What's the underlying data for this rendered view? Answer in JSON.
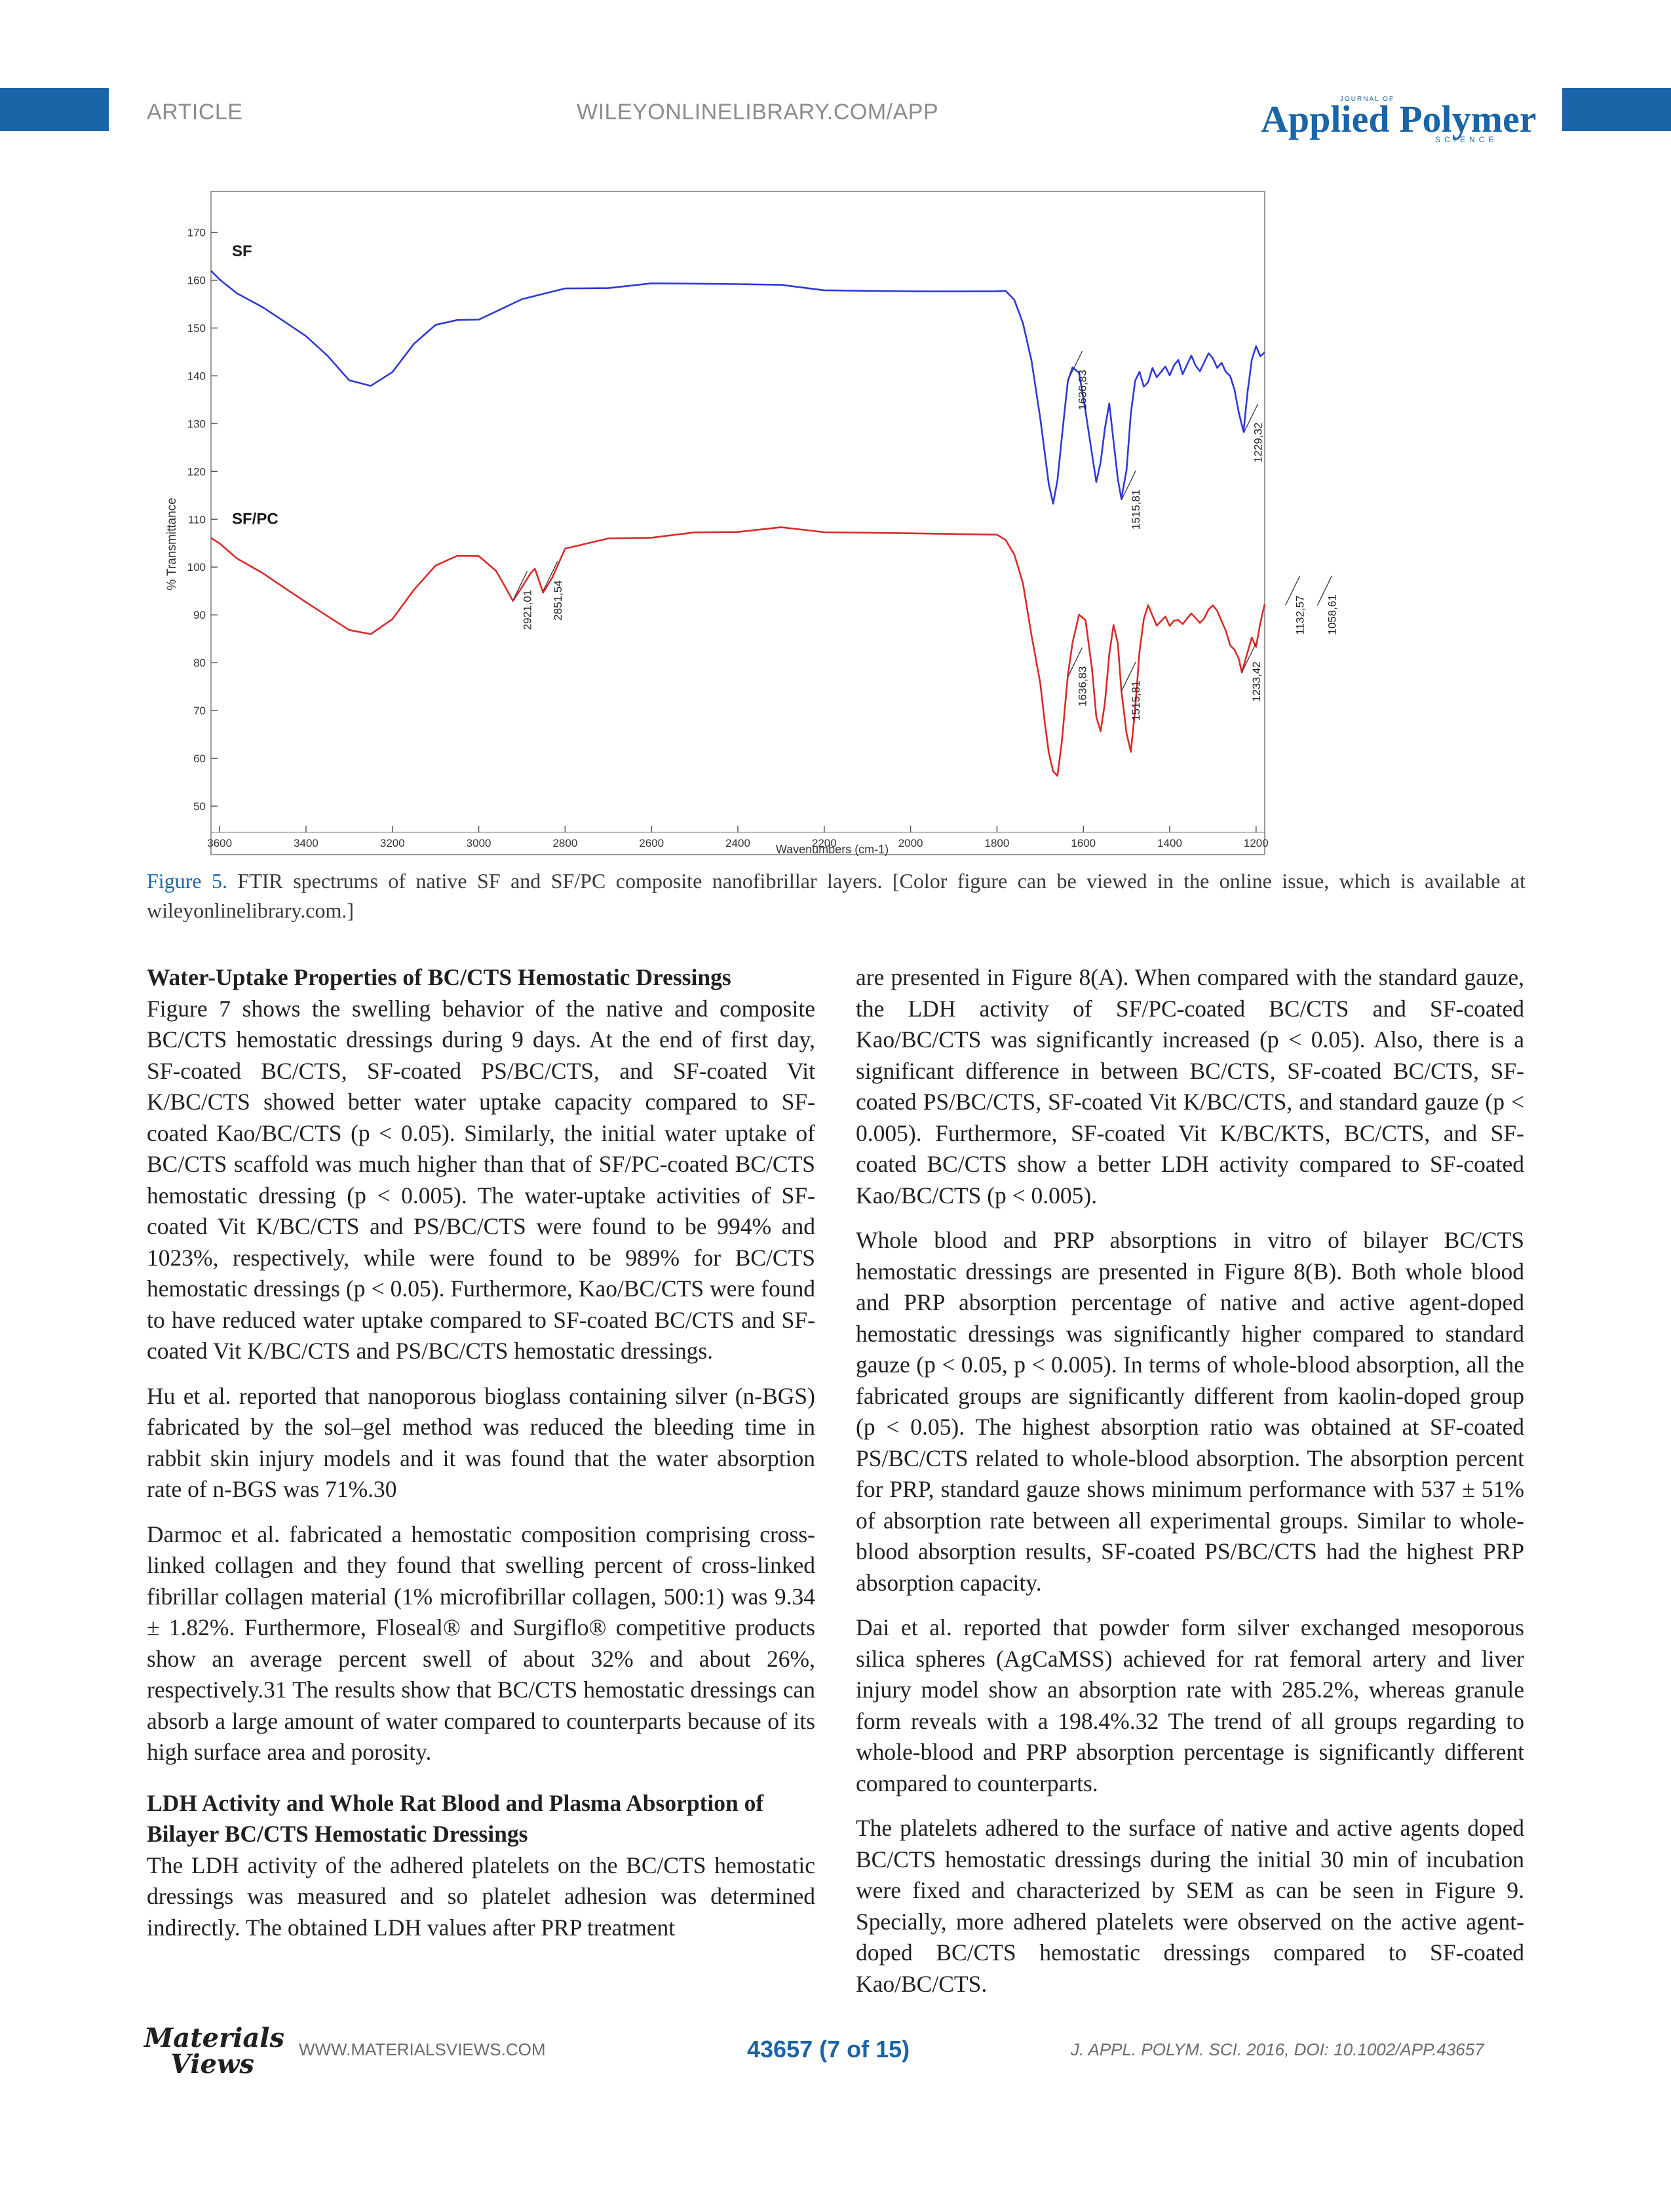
{
  "header": {
    "section": "ARTICLE",
    "url": "WILEYONLINELIBRARY.COM/APP",
    "journal_small": "JOURNAL OF",
    "journal": "Applied Polymer",
    "journal_sub": "SCIENCE",
    "accent_color": "#1a64a8"
  },
  "chart_data": {
    "type": "line",
    "xlabel": "Wavenumbers (cm-1)",
    "ylabel": "% Transmittance",
    "xlim": [
      3620,
      1180
    ],
    "ylim": [
      50,
      172
    ],
    "x_reversed": true,
    "x_ticks": [
      3600,
      3400,
      3200,
      3000,
      2800,
      2600,
      2400,
      2200,
      2000,
      1800,
      1600,
      1400,
      1200
    ],
    "y_ticks": [
      50,
      60,
      70,
      80,
      90,
      100,
      110,
      120,
      130,
      140,
      150,
      160,
      170
    ],
    "grid": false,
    "series": [
      {
        "name": "SF",
        "color": "#2e38d6",
        "x": [
          3620,
          3600,
          3560,
          3500,
          3450,
          3400,
          3350,
          3300,
          3250,
          3200,
          3150,
          3100,
          3050,
          3000,
          2950,
          2900,
          2850,
          2800,
          2700,
          2600,
          2500,
          2400,
          2300,
          2200,
          2100,
          2000,
          1900,
          1800,
          1780,
          1760,
          1740,
          1720,
          1700,
          1690,
          1680,
          1670,
          1660,
          1650,
          1636,
          1625,
          1610,
          1595,
          1580,
          1570,
          1560,
          1550,
          1540,
          1530,
          1520,
          1512,
          1500,
          1490,
          1480,
          1470,
          1460,
          1450,
          1440,
          1430,
          1420,
          1410,
          1400,
          1390,
          1380,
          1370,
          1360,
          1350,
          1340,
          1330,
          1320,
          1310,
          1300,
          1290,
          1280,
          1270,
          1260,
          1250,
          1240,
          1229,
          1220,
          1210,
          1200,
          1190,
          1180
        ],
        "y": [
          162,
          160,
          157,
          154,
          151,
          148,
          144,
          139,
          138,
          141,
          147,
          151,
          152,
          152,
          154,
          156,
          157,
          158,
          158,
          159,
          159,
          159,
          159,
          158,
          158,
          158,
          158,
          158,
          158,
          156,
          151,
          143,
          131,
          124,
          117,
          113,
          118,
          127,
          139,
          142,
          141,
          133,
          124,
          118,
          122,
          129,
          134,
          126,
          118,
          114,
          120,
          132,
          139,
          141,
          138,
          139,
          142,
          140,
          141,
          142,
          140,
          142,
          143,
          140,
          142,
          144,
          142,
          141,
          143,
          145,
          144,
          142,
          143,
          141,
          140,
          137,
          132,
          128,
          136,
          143,
          146,
          144,
          145
        ]
      },
      {
        "name": "SF/PC",
        "color": "#d92a2a",
        "x": [
          3620,
          3600,
          3560,
          3500,
          3450,
          3400,
          3350,
          3300,
          3250,
          3200,
          3150,
          3100,
          3050,
          3000,
          2960,
          2940,
          2921,
          2900,
          2880,
          2870,
          2851,
          2830,
          2800,
          2700,
          2600,
          2500,
          2400,
          2300,
          2200,
          2100,
          2000,
          1900,
          1800,
          1780,
          1760,
          1740,
          1720,
          1700,
          1690,
          1680,
          1670,
          1660,
          1650,
          1636,
          1625,
          1610,
          1595,
          1580,
          1570,
          1560,
          1550,
          1540,
          1530,
          1520,
          1512,
          1500,
          1490,
          1480,
          1470,
          1460,
          1450,
          1440,
          1430,
          1420,
          1410,
          1400,
          1390,
          1380,
          1370,
          1360,
          1350,
          1340,
          1330,
          1320,
          1310,
          1300,
          1290,
          1280,
          1270,
          1260,
          1250,
          1240,
          1233,
          1220,
          1210,
          1200,
          1190,
          1180
        ],
        "y": [
          106,
          105,
          102,
          99,
          96,
          93,
          90,
          87,
          86,
          89,
          95,
          100,
          102,
          102,
          99,
          96,
          93,
          96,
          99,
          100,
          95,
          98,
          104,
          106,
          106,
          107,
          107,
          108,
          107,
          107,
          107,
          107,
          107,
          106,
          103,
          97,
          86,
          76,
          68,
          61,
          57,
          56,
          63,
          77,
          84,
          90,
          89,
          79,
          69,
          66,
          72,
          82,
          88,
          84,
          74,
          65,
          61,
          70,
          82,
          89,
          92,
          90,
          88,
          89,
          90,
          88,
          89,
          89,
          88,
          89,
          90,
          89,
          88,
          89,
          91,
          92,
          91,
          89,
          87,
          84,
          83,
          81,
          78,
          82,
          85,
          83,
          88,
          92
        ]
      }
    ],
    "annotations": [
      {
        "series": "SF",
        "text": "1636,83",
        "x": 1636
      },
      {
        "series": "SF",
        "text": "1515,81",
        "x": 1512
      },
      {
        "series": "SF",
        "text": "1229,32",
        "x": 1229
      },
      {
        "series": "SF/PC",
        "text": "2921,01",
        "x": 2921
      },
      {
        "series": "SF/PC",
        "text": "2851,54",
        "x": 2851
      },
      {
        "series": "SF/PC",
        "text": "1636,83",
        "x": 1636
      },
      {
        "series": "SF/PC",
        "text": "1515,81",
        "x": 1512
      },
      {
        "series": "SF/PC",
        "text": "1233,42",
        "x": 1233
      },
      {
        "series": "SF/PC",
        "text": "1132,57",
        "x": 1132
      },
      {
        "series": "SF/PC",
        "text": "1058,61",
        "x": 1058
      }
    ]
  },
  "caption": {
    "label": "Figure 5.",
    "text": "FTIR spectrums of native SF and SF/PC composite nanofibrillar layers. [Color figure can be viewed in the online issue, which is available at wileyonlinelibrary.com.]"
  },
  "left": {
    "h1": "Water-Uptake Properties of BC/CTS Hemostatic Dressings",
    "p1": "Figure 7 shows the swelling behavior of the native and composite BC/CTS hemostatic dressings during 9 days. At the end of first day, SF-coated BC/CTS, SF-coated PS/BC/CTS, and SF-coated Vit K/BC/CTS showed better water uptake capacity compared to SF-coated Kao/BC/CTS (p < 0.05). Similarly, the initial water uptake of BC/CTS scaffold was much higher than that of SF/PC-coated BC/CTS hemostatic dressing (p < 0.005). The water-uptake activities of SF-coated Vit K/BC/CTS and PS/BC/CTS were found to be 994% and 1023%, respectively, while were found to be 989% for BC/CTS hemostatic dressings (p < 0.05). Furthermore, Kao/BC/CTS were found to have reduced water uptake compared to SF-coated BC/CTS and SF-coated Vit K/BC/CTS and PS/BC/CTS hemostatic dressings.",
    "p2": "Hu et al. reported that nanoporous bioglass containing silver (n-BGS) fabricated by the sol–gel method was reduced the bleeding time in rabbit skin injury models and it was found that the water absorption rate of n-BGS was 71%.30",
    "p3": "Darmoc et al. fabricated a hemostatic composition comprising cross-linked collagen and they found that swelling percent of cross-linked fibrillar collagen material (1% microfibrillar collagen, 500:1) was 9.34 ± 1.82%. Furthermore, Floseal® and Surgiflo® competitive products show an average percent swell of about 32% and about 26%, respectively.31 The results show that BC/CTS hemostatic dressings can absorb a large amount of water compared to counterparts because of its high surface area and porosity.",
    "h2": "LDH Activity and Whole Rat Blood and Plasma Absorption of Bilayer BC/CTS Hemostatic Dressings",
    "p4": "The LDH activity of the adhered platelets on the BC/CTS hemostatic dressings was measured and so platelet adhesion was determined indirectly. The obtained LDH values after PRP treatment"
  },
  "right": {
    "p1": "are presented in Figure 8(A). When compared with the standard gauze, the LDH activity of SF/PC-coated BC/CTS and SF-coated Kao/BC/CTS was significantly increased (p < 0.05). Also, there is a significant difference in between BC/CTS, SF-coated BC/CTS, SF-coated PS/BC/CTS, SF-coated Vit K/BC/CTS, and standard gauze (p < 0.005). Furthermore, SF-coated Vit K/BC/KTS, BC/CTS, and SF-coated BC/CTS show a better LDH activity compared to SF-coated Kao/BC/CTS (p < 0.005).",
    "p2": "Whole blood and PRP absorptions in vitro of bilayer BC/CTS hemostatic dressings are presented in Figure 8(B). Both whole blood and PRP absorption percentage of native and active agent-doped hemostatic dressings was significantly higher compared to standard gauze (p < 0.05, p < 0.005). In terms of whole-blood absorption, all the fabricated groups are significantly different from kaolin-doped group (p < 0.05). The highest absorption ratio was obtained at SF-coated PS/BC/CTS related to whole-blood absorption. The absorption percent for PRP, standard gauze shows minimum performance with 537 ± 51% of absorption rate between all experimental groups. Similar to whole-blood absorption results, SF-coated PS/BC/CTS had the highest PRP absorption capacity.",
    "p3": "Dai et al. reported that powder form silver exchanged mesoporous silica spheres (AgCaMSS) achieved for rat femoral artery and liver injury model show an absorption rate with 285.2%, whereas granule form reveals with a 198.4%.32 The trend of all groups regarding to whole-blood and PRP absorption percentage is significantly different compared to counterparts.",
    "p4": "The platelets adhered to the surface of native and active agents doped BC/CTS hemostatic dressings during the initial 30 min of incubation were fixed and characterized by SEM as can be seen in Figure 9. Specially, more adhered platelets were observed on the active agent-doped BC/CTS hemostatic dressings compared to SF-coated Kao/BC/CTS."
  },
  "footer": {
    "logo_line1": "Materials",
    "logo_line2": "Views",
    "url": "WWW.MATERIALSVIEWS.COM",
    "page": "43657 (7 of 15)",
    "citation": "J. APPL. POLYM. SCI. 2016, DOI: 10.1002/APP.43657"
  }
}
